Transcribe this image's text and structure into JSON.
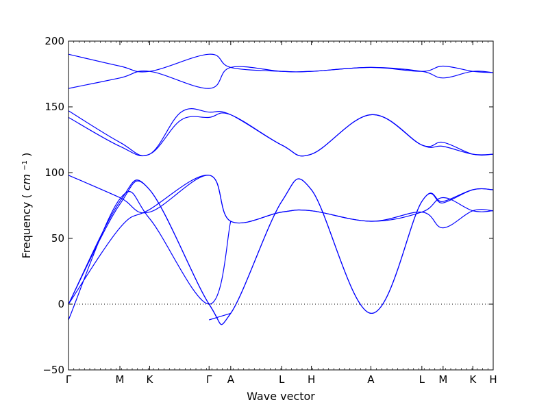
{
  "chart_data": {
    "type": "line",
    "title": "",
    "xlabel": "Wave vector",
    "ylabel": "Frequency",
    "ylabel_unit": "cm",
    "ylabel_unit_exp": "−1",
    "ylim": [
      -50,
      200
    ],
    "yticks": [
      -50,
      0,
      50,
      100,
      150,
      200
    ],
    "xlim": [
      0,
      1
    ],
    "zero_line": true,
    "grid": false,
    "line_color": "#0000ff",
    "high_symmetry_points": [
      {
        "label": "Γ",
        "x": 0.0
      },
      {
        "label": "M",
        "x": 0.121
      },
      {
        "label": "K",
        "x": 0.191
      },
      {
        "label": "Γ",
        "x": 0.331
      },
      {
        "label": "A",
        "x": 0.382
      },
      {
        "label": "L",
        "x": 0.502
      },
      {
        "label": "H",
        "x": 0.572
      },
      {
        "label": "A",
        "x": 0.712
      },
      {
        "label": "L",
        "x": 0.832
      },
      {
        "label": "M",
        "x": 0.882
      },
      {
        "label": "K",
        "x": 0.952
      },
      {
        "label": "H",
        "x": 1.0
      }
    ],
    "series": [
      {
        "values": [
          [
            0,
            190
          ],
          [
            0.121,
            181
          ],
          [
            0.191,
            177
          ],
          [
            0.331,
            190
          ],
          [
            0.382,
            180
          ],
          [
            0.502,
            177
          ],
          [
            0.572,
            177
          ],
          [
            0.712,
            180
          ],
          [
            0.832,
            177
          ],
          [
            0.882,
            181
          ],
          [
            0.952,
            177
          ],
          [
            1.0,
            176
          ]
        ]
      },
      {
        "values": [
          [
            0,
            164
          ],
          [
            0.121,
            172
          ],
          [
            0.191,
            177
          ],
          [
            0.331,
            164
          ],
          [
            0.382,
            180
          ],
          [
            0.502,
            177
          ],
          [
            0.572,
            177
          ],
          [
            0.712,
            180
          ],
          [
            0.832,
            177
          ],
          [
            0.882,
            172
          ],
          [
            0.952,
            177
          ],
          [
            1.0,
            176
          ]
        ]
      },
      {
        "values": [
          [
            0,
            147
          ],
          [
            0.121,
            123
          ],
          [
            0.191,
            114
          ],
          [
            0.265,
            146
          ],
          [
            0.331,
            146
          ],
          [
            0.382,
            144
          ],
          [
            0.502,
            121
          ],
          [
            0.572,
            114
          ],
          [
            0.712,
            144
          ],
          [
            0.832,
            121
          ],
          [
            0.882,
            123
          ],
          [
            0.952,
            114
          ],
          [
            1.0,
            114
          ]
        ]
      },
      {
        "values": [
          [
            0,
            142
          ],
          [
            0.121,
            120
          ],
          [
            0.191,
            114
          ],
          [
            0.265,
            140
          ],
          [
            0.331,
            142
          ],
          [
            0.382,
            144
          ],
          [
            0.502,
            121
          ],
          [
            0.572,
            114
          ],
          [
            0.712,
            144
          ],
          [
            0.832,
            121
          ],
          [
            0.882,
            120
          ],
          [
            0.952,
            114
          ],
          [
            1.0,
            114
          ]
        ]
      },
      {
        "values": [
          [
            0,
            98
          ],
          [
            0.121,
            81
          ],
          [
            0.191,
            70
          ],
          [
            0.331,
            98
          ],
          [
            0.382,
            63
          ],
          [
            0.502,
            70
          ],
          [
            0.572,
            71
          ],
          [
            0.712,
            63
          ],
          [
            0.832,
            70
          ],
          [
            0.882,
            81
          ],
          [
            0.952,
            71
          ],
          [
            1.0,
            71
          ]
        ]
      },
      {
        "values": [
          [
            0,
            0
          ],
          [
            0.121,
            78
          ],
          [
            0.191,
            87
          ],
          [
            0.331,
            0
          ],
          [
            0.382,
            -7
          ],
          [
            0.502,
            78
          ],
          [
            0.572,
            87
          ],
          [
            0.712,
            -7
          ],
          [
            0.832,
            78
          ],
          [
            0.882,
            78
          ],
          [
            0.952,
            87
          ],
          [
            1.0,
            87
          ]
        ]
      },
      {
        "values": [
          [
            0,
            0
          ],
          [
            0.121,
            76
          ],
          [
            0.191,
            87
          ],
          [
            0.331,
            0
          ],
          [
            0.382,
            -7
          ],
          [
            0.502,
            78
          ],
          [
            0.572,
            87
          ],
          [
            0.712,
            -7
          ],
          [
            0.832,
            78
          ],
          [
            0.882,
            77
          ],
          [
            0.952,
            87
          ],
          [
            1.0,
            87
          ]
        ]
      },
      {
        "values": [
          [
            0,
            0
          ],
          [
            0.121,
            58
          ],
          [
            0.191,
            72
          ],
          [
            0.331,
            98
          ],
          [
            0.382,
            63
          ],
          [
            0.502,
            70
          ],
          [
            0.572,
            71
          ],
          [
            0.712,
            63
          ],
          [
            0.832,
            70
          ],
          [
            0.882,
            58
          ],
          [
            0.952,
            71
          ],
          [
            1.0,
            71
          ]
        ]
      },
      {
        "values": [
          [
            0,
            -12
          ],
          [
            0.121,
            80
          ],
          [
            0.191,
            65
          ],
          [
            0.331,
            0
          ],
          [
            0.382,
            63
          ]
        ]
      },
      {
        "values": [
          [
            0.331,
            -12
          ],
          [
            0.382,
            -7
          ]
        ]
      }
    ]
  }
}
